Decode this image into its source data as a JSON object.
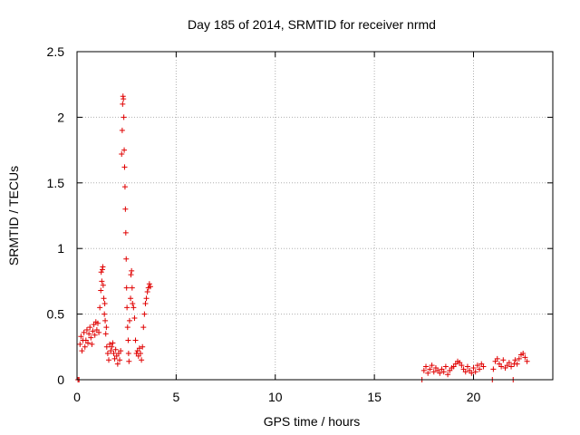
{
  "chart_data": {
    "type": "scatter",
    "title": "Day 185 of 2014, SRMTID for receiver nrmd",
    "xlabel": "GPS time / hours",
    "ylabel": "SRMTID / TECUs",
    "xlim": [
      0,
      24
    ],
    "ylim": [
      0,
      2.5
    ],
    "grid": true,
    "x_ticks": [
      0,
      5,
      10,
      15,
      20
    ],
    "x_tick_labels": [
      "0",
      "5",
      "10",
      "15",
      "20"
    ],
    "y_ticks": [
      0,
      0.5,
      1,
      1.5,
      2,
      2.5
    ],
    "y_tick_labels": [
      "0",
      "0.5",
      "1",
      "1.5",
      "2",
      "2.5"
    ],
    "marker": "plus",
    "color": "#e00000",
    "series": [
      {
        "name": "SRMTID",
        "points": [
          [
            0.05,
            0.0
          ],
          [
            0.1,
            0.0
          ],
          [
            0.15,
            0.27
          ],
          [
            0.2,
            0.33
          ],
          [
            0.25,
            0.22
          ],
          [
            0.3,
            0.3
          ],
          [
            0.35,
            0.36
          ],
          [
            0.4,
            0.25
          ],
          [
            0.45,
            0.3
          ],
          [
            0.5,
            0.38
          ],
          [
            0.55,
            0.28
          ],
          [
            0.6,
            0.35
          ],
          [
            0.65,
            0.4
          ],
          [
            0.7,
            0.32
          ],
          [
            0.75,
            0.27
          ],
          [
            0.8,
            0.37
          ],
          [
            0.85,
            0.42
          ],
          [
            0.9,
            0.34
          ],
          [
            0.95,
            0.44
          ],
          [
            1.0,
            0.38
          ],
          [
            1.05,
            0.43
          ],
          [
            1.1,
            0.36
          ],
          [
            1.15,
            0.55
          ],
          [
            1.2,
            0.68
          ],
          [
            1.22,
            0.82
          ],
          [
            1.25,
            0.75
          ],
          [
            1.28,
            0.84
          ],
          [
            1.3,
            0.86
          ],
          [
            1.32,
            0.72
          ],
          [
            1.35,
            0.62
          ],
          [
            1.38,
            0.5
          ],
          [
            1.4,
            0.58
          ],
          [
            1.42,
            0.45
          ],
          [
            1.45,
            0.35
          ],
          [
            1.48,
            0.4
          ],
          [
            1.5,
            0.25
          ],
          [
            1.55,
            0.2
          ],
          [
            1.6,
            0.15
          ],
          [
            1.65,
            0.27
          ],
          [
            1.7,
            0.22
          ],
          [
            1.75,
            0.25
          ],
          [
            1.8,
            0.28
          ],
          [
            1.85,
            0.2
          ],
          [
            1.9,
            0.16
          ],
          [
            1.95,
            0.23
          ],
          [
            2.0,
            0.18
          ],
          [
            2.05,
            0.12
          ],
          [
            2.1,
            0.2
          ],
          [
            2.15,
            0.15
          ],
          [
            2.2,
            0.22
          ],
          [
            2.25,
            1.72
          ],
          [
            2.28,
            1.9
          ],
          [
            2.3,
            2.1
          ],
          [
            2.32,
            2.16
          ],
          [
            2.34,
            2.14
          ],
          [
            2.36,
            2.0
          ],
          [
            2.38,
            1.75
          ],
          [
            2.4,
            1.62
          ],
          [
            2.42,
            1.47
          ],
          [
            2.44,
            1.3
          ],
          [
            2.46,
            1.12
          ],
          [
            2.48,
            0.92
          ],
          [
            2.5,
            0.7
          ],
          [
            2.52,
            0.55
          ],
          [
            2.55,
            0.4
          ],
          [
            2.58,
            0.3
          ],
          [
            2.6,
            0.2
          ],
          [
            2.62,
            0.14
          ],
          [
            2.65,
            0.45
          ],
          [
            2.7,
            0.62
          ],
          [
            2.72,
            0.8
          ],
          [
            2.75,
            0.83
          ],
          [
            2.78,
            0.7
          ],
          [
            2.8,
            0.58
          ],
          [
            2.85,
            0.55
          ],
          [
            2.9,
            0.47
          ],
          [
            2.95,
            0.3
          ],
          [
            3.0,
            0.2
          ],
          [
            3.05,
            0.22
          ],
          [
            3.1,
            0.18
          ],
          [
            3.15,
            0.24
          ],
          [
            3.2,
            0.2
          ],
          [
            3.25,
            0.15
          ],
          [
            3.3,
            0.25
          ],
          [
            3.35,
            0.4
          ],
          [
            3.4,
            0.5
          ],
          [
            3.45,
            0.58
          ],
          [
            3.5,
            0.62
          ],
          [
            3.55,
            0.67
          ],
          [
            3.6,
            0.7
          ],
          [
            3.65,
            0.73
          ],
          [
            3.7,
            0.71
          ],
          [
            17.4,
            0.0
          ],
          [
            17.5,
            0.07
          ],
          [
            17.6,
            0.1
          ],
          [
            17.7,
            0.05
          ],
          [
            17.8,
            0.08
          ],
          [
            17.9,
            0.11
          ],
          [
            18.0,
            0.06
          ],
          [
            18.1,
            0.09
          ],
          [
            18.2,
            0.07
          ],
          [
            18.3,
            0.05
          ],
          [
            18.4,
            0.08
          ],
          [
            18.5,
            0.06
          ],
          [
            18.6,
            0.1
          ],
          [
            18.7,
            0.04
          ],
          [
            18.8,
            0.07
          ],
          [
            18.9,
            0.09
          ],
          [
            19.0,
            0.1
          ],
          [
            19.1,
            0.12
          ],
          [
            19.2,
            0.14
          ],
          [
            19.3,
            0.13
          ],
          [
            19.4,
            0.11
          ],
          [
            19.5,
            0.08
          ],
          [
            19.6,
            0.06
          ],
          [
            19.7,
            0.1
          ],
          [
            19.8,
            0.07
          ],
          [
            19.9,
            0.05
          ],
          [
            20.0,
            0.09
          ],
          [
            20.1,
            0.06
          ],
          [
            20.2,
            0.11
          ],
          [
            20.3,
            0.08
          ],
          [
            20.4,
            0.12
          ],
          [
            20.5,
            0.1
          ],
          [
            20.95,
            0.0
          ],
          [
            21.0,
            0.08
          ],
          [
            21.1,
            0.14
          ],
          [
            21.2,
            0.16
          ],
          [
            21.3,
            0.12
          ],
          [
            21.4,
            0.1
          ],
          [
            21.5,
            0.15
          ],
          [
            21.6,
            0.09
          ],
          [
            21.7,
            0.11
          ],
          [
            21.8,
            0.13
          ],
          [
            21.9,
            0.1
          ],
          [
            22.0,
            0.0
          ],
          [
            22.05,
            0.12
          ],
          [
            22.1,
            0.15
          ],
          [
            22.2,
            0.12
          ],
          [
            22.3,
            0.16
          ],
          [
            22.4,
            0.19
          ],
          [
            22.5,
            0.2
          ],
          [
            22.6,
            0.17
          ],
          [
            22.7,
            0.14
          ]
        ]
      }
    ]
  }
}
